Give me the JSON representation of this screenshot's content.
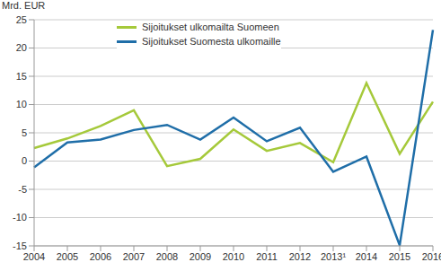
{
  "chart_data": {
    "type": "line",
    "ylabel": "Mrd. EUR",
    "categories": [
      "2004",
      "2005",
      "2006",
      "2007",
      "2008",
      "2009",
      "2010",
      "2011",
      "2012",
      "2013¹",
      "2014",
      "2015",
      "2016"
    ],
    "series": [
      {
        "name": "Sijoitukset ulkomailta Suomeen",
        "color": "#a5c93a",
        "values": [
          2.3,
          4.0,
          6.2,
          9.0,
          -0.9,
          0.4,
          5.6,
          1.8,
          3.2,
          -0.2,
          13.8,
          1.3,
          10.5
        ]
      },
      {
        "name": "Sijoitukset Suomesta ulkomaille",
        "color": "#1f6ea8",
        "values": [
          -1.1,
          3.3,
          3.8,
          5.5,
          6.4,
          3.8,
          7.7,
          3.5,
          5.9,
          -1.9,
          0.8,
          -14.9,
          23.2
        ]
      }
    ],
    "ylim": [
      -15,
      25
    ],
    "yticks": [
      -15,
      -10,
      -5,
      0,
      5,
      10,
      15,
      20,
      25
    ],
    "grid": true,
    "legend": "top"
  }
}
